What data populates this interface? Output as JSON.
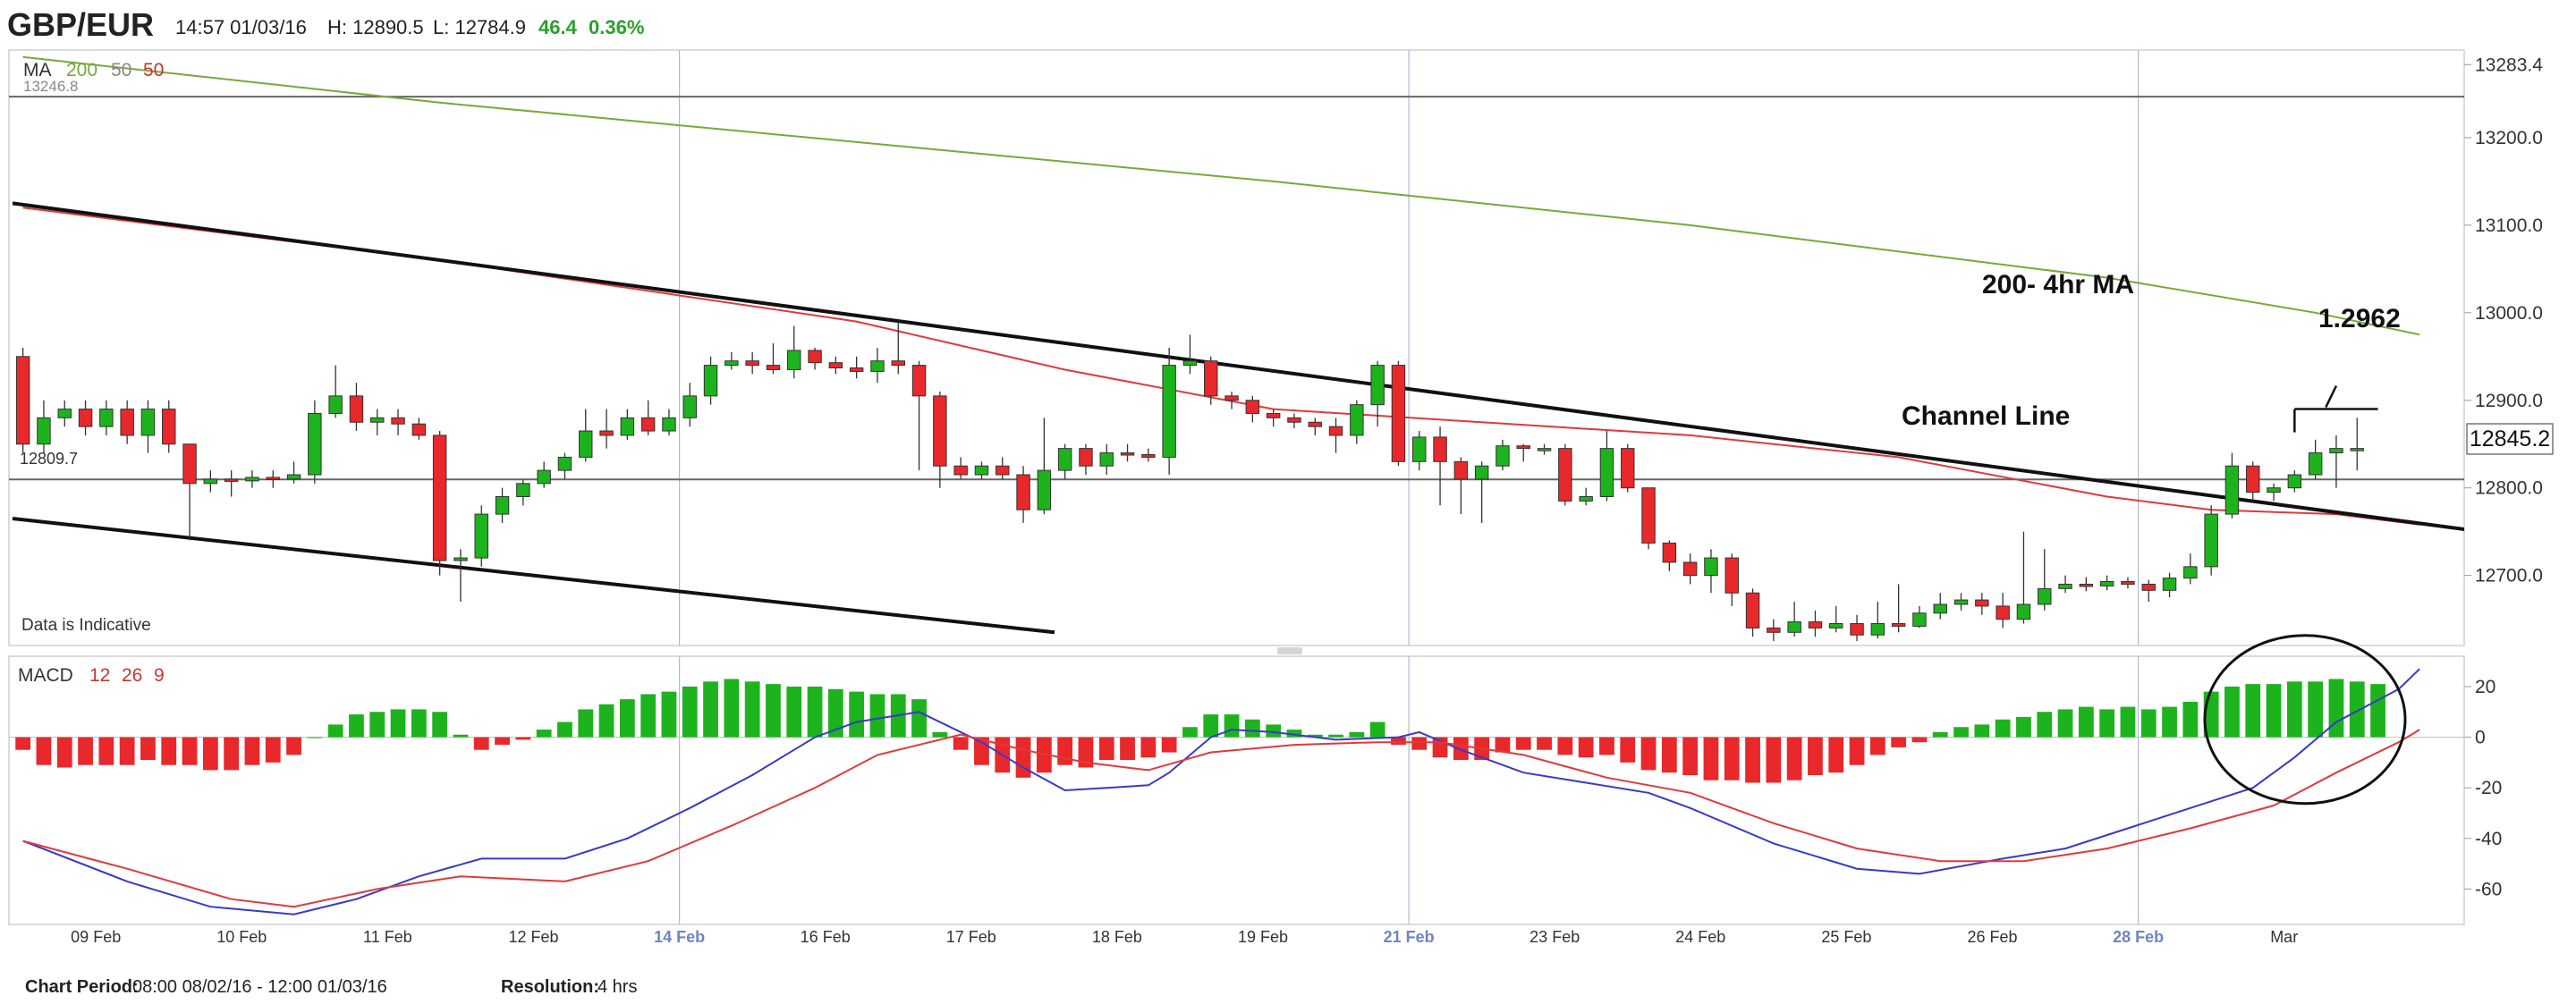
{
  "header": {
    "symbol": "GBP/EUR",
    "datetime": "14:57 01/03/16",
    "high": "H: 12890.5",
    "low": "L: 12784.9",
    "change": "46.4",
    "change_pct": "0.36%"
  },
  "price_panel": {
    "ma_label": "MA",
    "ma_periods": [
      "200",
      "50",
      "50"
    ],
    "ref_line_label": "13246.8",
    "baseline_label": "12809.7",
    "current_price": "12845.2",
    "disclaimer": "Data is Indicative",
    "annotations": {
      "ma200": "200- 4hr MA",
      "channel": "Channel Line",
      "target": "1.2962"
    }
  },
  "macd_panel": {
    "label": "MACD",
    "params": [
      "12",
      "26",
      "9"
    ]
  },
  "footer": {
    "period_label": "Chart Period:",
    "period_value": "08:00 08/02/16 - 12:00 01/03/16",
    "resolution_label": "Resolution:",
    "resolution_value": "4 hrs"
  },
  "colors": {
    "up": "#1db31d",
    "down": "#e8282b",
    "ma200": "#79a83a",
    "ma50": "#e0393c",
    "macd": "#3838cc",
    "signal": "#e0393c",
    "change": "#2aa02a",
    "week_label": "#6d86c0"
  },
  "chart_data": [
    {
      "type": "candlestick",
      "title": "GBP/EUR",
      "ylim": [
        12620,
        13300
      ],
      "y_ticks": [
        12700,
        12800,
        12900,
        13000,
        13100,
        13200,
        13283.4
      ],
      "y_tick_labels": [
        "12700.0",
        "12800.0",
        "12900.0",
        "13000.0",
        "13100.0",
        "13200.0",
        "13283.4"
      ],
      "x_labels": [
        "09 Feb",
        "10 Feb",
        "11 Feb",
        "12 Feb",
        "14 Feb",
        "16 Feb",
        "17 Feb",
        "18 Feb",
        "19 Feb",
        "21 Feb",
        "23 Feb",
        "24 Feb",
        "25 Feb",
        "26 Feb",
        "28 Feb",
        "Mar"
      ],
      "week_labels": [
        "14 Feb",
        "21 Feb",
        "28 Feb"
      ],
      "candles": [
        [
          12950,
          12850,
          12960,
          12840
        ],
        [
          12850,
          12880,
          12900,
          12840
        ],
        [
          12880,
          12890,
          12900,
          12870
        ],
        [
          12890,
          12870,
          12900,
          12860
        ],
        [
          12870,
          12890,
          12900,
          12860
        ],
        [
          12890,
          12860,
          12900,
          12850
        ],
        [
          12860,
          12890,
          12900,
          12840
        ],
        [
          12890,
          12850,
          12900,
          12840
        ],
        [
          12850,
          12805,
          12850,
          12740
        ],
        [
          12805,
          12810,
          12820,
          12795
        ],
        [
          12810,
          12808,
          12820,
          12790
        ],
        [
          12808,
          12812,
          12820,
          12800
        ],
        [
          12812,
          12810,
          12820,
          12800
        ],
        [
          12810,
          12815,
          12830,
          12805
        ],
        [
          12815,
          12885,
          12900,
          12805
        ],
        [
          12885,
          12905,
          12940,
          12880
        ],
        [
          12905,
          12875,
          12920,
          12865
        ],
        [
          12875,
          12880,
          12890,
          12860
        ],
        [
          12880,
          12873,
          12890,
          12860
        ],
        [
          12873,
          12860,
          12880,
          12855
        ],
        [
          12860,
          12717,
          12865,
          12700
        ],
        [
          12717,
          12720,
          12730,
          12670
        ],
        [
          12720,
          12770,
          12780,
          12710
        ],
        [
          12770,
          12790,
          12800,
          12760
        ],
        [
          12790,
          12805,
          12810,
          12780
        ],
        [
          12805,
          12820,
          12830,
          12800
        ],
        [
          12820,
          12835,
          12840,
          12810
        ],
        [
          12835,
          12865,
          12890,
          12830
        ],
        [
          12865,
          12860,
          12890,
          12845
        ],
        [
          12860,
          12880,
          12890,
          12855
        ],
        [
          12880,
          12865,
          12900,
          12860
        ],
        [
          12865,
          12880,
          12890,
          12860
        ],
        [
          12880,
          12905,
          12920,
          12870
        ],
        [
          12905,
          12940,
          12950,
          12895
        ],
        [
          12940,
          12945,
          12955,
          12935
        ],
        [
          12945,
          12940,
          12955,
          12930
        ],
        [
          12940,
          12935,
          12965,
          12930
        ],
        [
          12935,
          12957,
          12985,
          12925
        ],
        [
          12957,
          12943,
          12960,
          12935
        ],
        [
          12943,
          12937,
          12950,
          12930
        ],
        [
          12937,
          12933,
          12950,
          12925
        ],
        [
          12933,
          12945,
          12960,
          12920
        ],
        [
          12945,
          12940,
          12990,
          12930
        ],
        [
          12940,
          12905,
          12945,
          12820
        ],
        [
          12905,
          12825,
          12910,
          12800
        ],
        [
          12825,
          12815,
          12835,
          12810
        ],
        [
          12815,
          12825,
          12830,
          12810
        ],
        [
          12825,
          12815,
          12835,
          12810
        ],
        [
          12815,
          12775,
          12825,
          12760
        ],
        [
          12775,
          12820,
          12880,
          12770
        ],
        [
          12820,
          12845,
          12850,
          12810
        ],
        [
          12845,
          12825,
          12850,
          12815
        ],
        [
          12825,
          12840,
          12850,
          12815
        ],
        [
          12840,
          12838,
          12850,
          12830
        ],
        [
          12838,
          12835,
          12845,
          12830
        ],
        [
          12835,
          12940,
          12960,
          12815
        ],
        [
          12940,
          12945,
          12975,
          12930
        ],
        [
          12945,
          12905,
          12950,
          12895
        ],
        [
          12905,
          12900,
          12910,
          12890
        ],
        [
          12900,
          12885,
          12905,
          12875
        ],
        [
          12885,
          12880,
          12890,
          12870
        ],
        [
          12880,
          12875,
          12885,
          12868
        ],
        [
          12875,
          12870,
          12880,
          12860
        ],
        [
          12870,
          12860,
          12880,
          12840
        ],
        [
          12860,
          12895,
          12900,
          12850
        ],
        [
          12895,
          12940,
          12945,
          12870
        ],
        [
          12940,
          12830,
          12945,
          12825
        ],
        [
          12830,
          12858,
          12865,
          12820
        ],
        [
          12858,
          12830,
          12870,
          12780
        ],
        [
          12830,
          12810,
          12835,
          12770
        ],
        [
          12810,
          12825,
          12830,
          12760
        ],
        [
          12825,
          12848,
          12855,
          12820
        ],
        [
          12848,
          12845,
          12850,
          12830
        ],
        [
          12845,
          12845,
          12850,
          12838
        ],
        [
          12845,
          12785,
          12850,
          12780
        ],
        [
          12785,
          12790,
          12800,
          12780
        ],
        [
          12790,
          12845,
          12865,
          12785
        ],
        [
          12845,
          12800,
          12850,
          12795
        ],
        [
          12800,
          12737,
          12800,
          12730
        ],
        [
          12737,
          12715,
          12740,
          12705
        ],
        [
          12715,
          12700,
          12725,
          12690
        ],
        [
          12700,
          12720,
          12730,
          12680
        ],
        [
          12720,
          12680,
          12725,
          12665
        ],
        [
          12680,
          12640,
          12685,
          12630
        ],
        [
          12640,
          12635,
          12650,
          12625
        ],
        [
          12635,
          12647,
          12670,
          12630
        ],
        [
          12647,
          12640,
          12660,
          12630
        ],
        [
          12640,
          12645,
          12665,
          12635
        ],
        [
          12645,
          12632,
          12655,
          12625
        ],
        [
          12632,
          12645,
          12670,
          12628
        ],
        [
          12645,
          12642,
          12690,
          12635
        ],
        [
          12642,
          12657,
          12665,
          12640
        ],
        [
          12657,
          12667,
          12680,
          12650
        ],
        [
          12667,
          12672,
          12680,
          12660
        ],
        [
          12672,
          12665,
          12680,
          12655
        ],
        [
          12665,
          12650,
          12680,
          12640
        ],
        [
          12650,
          12667,
          12750,
          12645
        ],
        [
          12667,
          12685,
          12730,
          12660
        ],
        [
          12685,
          12690,
          12700,
          12680
        ],
        [
          12690,
          12688,
          12698,
          12682
        ],
        [
          12688,
          12693,
          12700,
          12683
        ],
        [
          12693,
          12690,
          12698,
          12685
        ],
        [
          12690,
          12683,
          12695,
          12670
        ],
        [
          12683,
          12697,
          12703,
          12675
        ],
        [
          12697,
          12710,
          12725,
          12690
        ],
        [
          12710,
          12770,
          12780,
          12700
        ],
        [
          12770,
          12825,
          12840,
          12765
        ],
        [
          12825,
          12795,
          12830,
          12785
        ],
        [
          12795,
          12800,
          12805,
          12785
        ],
        [
          12800,
          12815,
          12820,
          12795
        ],
        [
          12815,
          12840,
          12855,
          12810
        ],
        [
          12840,
          12845,
          12860,
          12800
        ],
        [
          12845,
          12845,
          12880,
          12820
        ]
      ],
      "ma200": [
        [
          0,
          13292
        ],
        [
          20,
          13240
        ],
        [
          60,
          13150
        ],
        [
          80,
          13100
        ],
        [
          100,
          13040
        ],
        [
          110,
          13000
        ],
        [
          115,
          12975
        ]
      ],
      "ma50": [
        [
          0,
          13120
        ],
        [
          20,
          13060
        ],
        [
          40,
          12990
        ],
        [
          50,
          12935
        ],
        [
          60,
          12890
        ],
        [
          70,
          12875
        ],
        [
          80,
          12860
        ],
        [
          90,
          12835
        ],
        [
          100,
          12790
        ],
        [
          105,
          12775
        ],
        [
          111,
          12770
        ],
        [
          115,
          12758
        ]
      ],
      "channel_upper": [
        [
          -0.5,
          13125
        ],
        [
          118,
          12750
        ]
      ],
      "channel_lower": [
        [
          -0.5,
          12765
        ],
        [
          49.5,
          12635
        ]
      ],
      "horizontal_lines": [
        13246.8,
        12809.7
      ],
      "target_bracket": {
        "x": [
          109,
          113
        ],
        "y": 12890
      }
    },
    {
      "type": "bar+line",
      "title": "MACD",
      "ylim": [
        -74,
        32
      ],
      "y_ticks": [
        20,
        0,
        -20,
        -40,
        -60
      ],
      "histogram": [
        -5,
        -11,
        -12,
        -11,
        -11,
        -11,
        -9,
        -11,
        -11,
        -13,
        -13,
        -11,
        -10,
        -7,
        0,
        5,
        9,
        10,
        11,
        11,
        10,
        1,
        -5,
        -3,
        -1,
        3,
        6,
        11,
        13,
        15,
        17,
        18,
        20,
        22,
        23,
        22,
        21,
        20,
        20,
        19,
        18,
        17,
        17,
        15,
        2,
        -5,
        -11,
        -14,
        -16,
        -14,
        -11,
        -12,
        -9,
        -9,
        -8,
        -6,
        4,
        9,
        9,
        7,
        5,
        3,
        1,
        1,
        2,
        6,
        -3,
        -5,
        -8,
        -9,
        -9,
        -6,
        -5,
        -5,
        -7,
        -8,
        -7,
        -10,
        -13,
        -14,
        -15,
        -17,
        -17,
        -18,
        -18,
        -17,
        -15,
        -14,
        -11,
        -7,
        -4,
        -2,
        2,
        4,
        5,
        7,
        8,
        10,
        11,
        12,
        11,
        12,
        11,
        12,
        14,
        18,
        20,
        21,
        21,
        22,
        22,
        23,
        22,
        21
      ],
      "macd_line": [
        [
          0,
          -41
        ],
        [
          5,
          -57
        ],
        [
          9,
          -67
        ],
        [
          13,
          -70
        ],
        [
          16,
          -64
        ],
        [
          19,
          -55
        ],
        [
          22,
          -48
        ],
        [
          26,
          -48
        ],
        [
          29,
          -40
        ],
        [
          32,
          -28
        ],
        [
          35,
          -15
        ],
        [
          38,
          0
        ],
        [
          40,
          6
        ],
        [
          43,
          10
        ],
        [
          46,
          -2
        ],
        [
          48,
          -12
        ],
        [
          50,
          -21
        ],
        [
          52,
          -20
        ],
        [
          54,
          -19
        ],
        [
          55,
          -14
        ],
        [
          57,
          0
        ],
        [
          58,
          3
        ],
        [
          60,
          2
        ],
        [
          63,
          -1
        ],
        [
          66,
          0
        ],
        [
          67,
          2
        ],
        [
          69,
          -5
        ],
        [
          72,
          -14
        ],
        [
          75,
          -18
        ],
        [
          78,
          -22
        ],
        [
          80,
          -28
        ],
        [
          84,
          -42
        ],
        [
          88,
          -52
        ],
        [
          91,
          -54
        ],
        [
          95,
          -48
        ],
        [
          98,
          -44
        ],
        [
          101,
          -36
        ],
        [
          104,
          -28
        ],
        [
          107,
          -20
        ],
        [
          109,
          -8
        ],
        [
          111,
          6
        ],
        [
          114,
          19
        ],
        [
          115,
          27
        ]
      ],
      "signal_line": [
        [
          0,
          -41
        ],
        [
          5,
          -52
        ],
        [
          10,
          -64
        ],
        [
          13,
          -67
        ],
        [
          17,
          -60
        ],
        [
          21,
          -55
        ],
        [
          26,
          -57
        ],
        [
          30,
          -49
        ],
        [
          34,
          -35
        ],
        [
          38,
          -20
        ],
        [
          41,
          -7
        ],
        [
          45,
          1
        ],
        [
          48,
          -5
        ],
        [
          51,
          -10
        ],
        [
          54,
          -13
        ],
        [
          57,
          -6
        ],
        [
          61,
          -3
        ],
        [
          65,
          -2
        ],
        [
          68,
          -2
        ],
        [
          72,
          -7
        ],
        [
          76,
          -16
        ],
        [
          80,
          -22
        ],
        [
          84,
          -34
        ],
        [
          88,
          -44
        ],
        [
          92,
          -49
        ],
        [
          96,
          -49
        ],
        [
          100,
          -44
        ],
        [
          104,
          -36
        ],
        [
          108,
          -27
        ],
        [
          111,
          -14
        ],
        [
          114,
          -2
        ],
        [
          115,
          3
        ]
      ],
      "annotation": "ellipse"
    }
  ]
}
